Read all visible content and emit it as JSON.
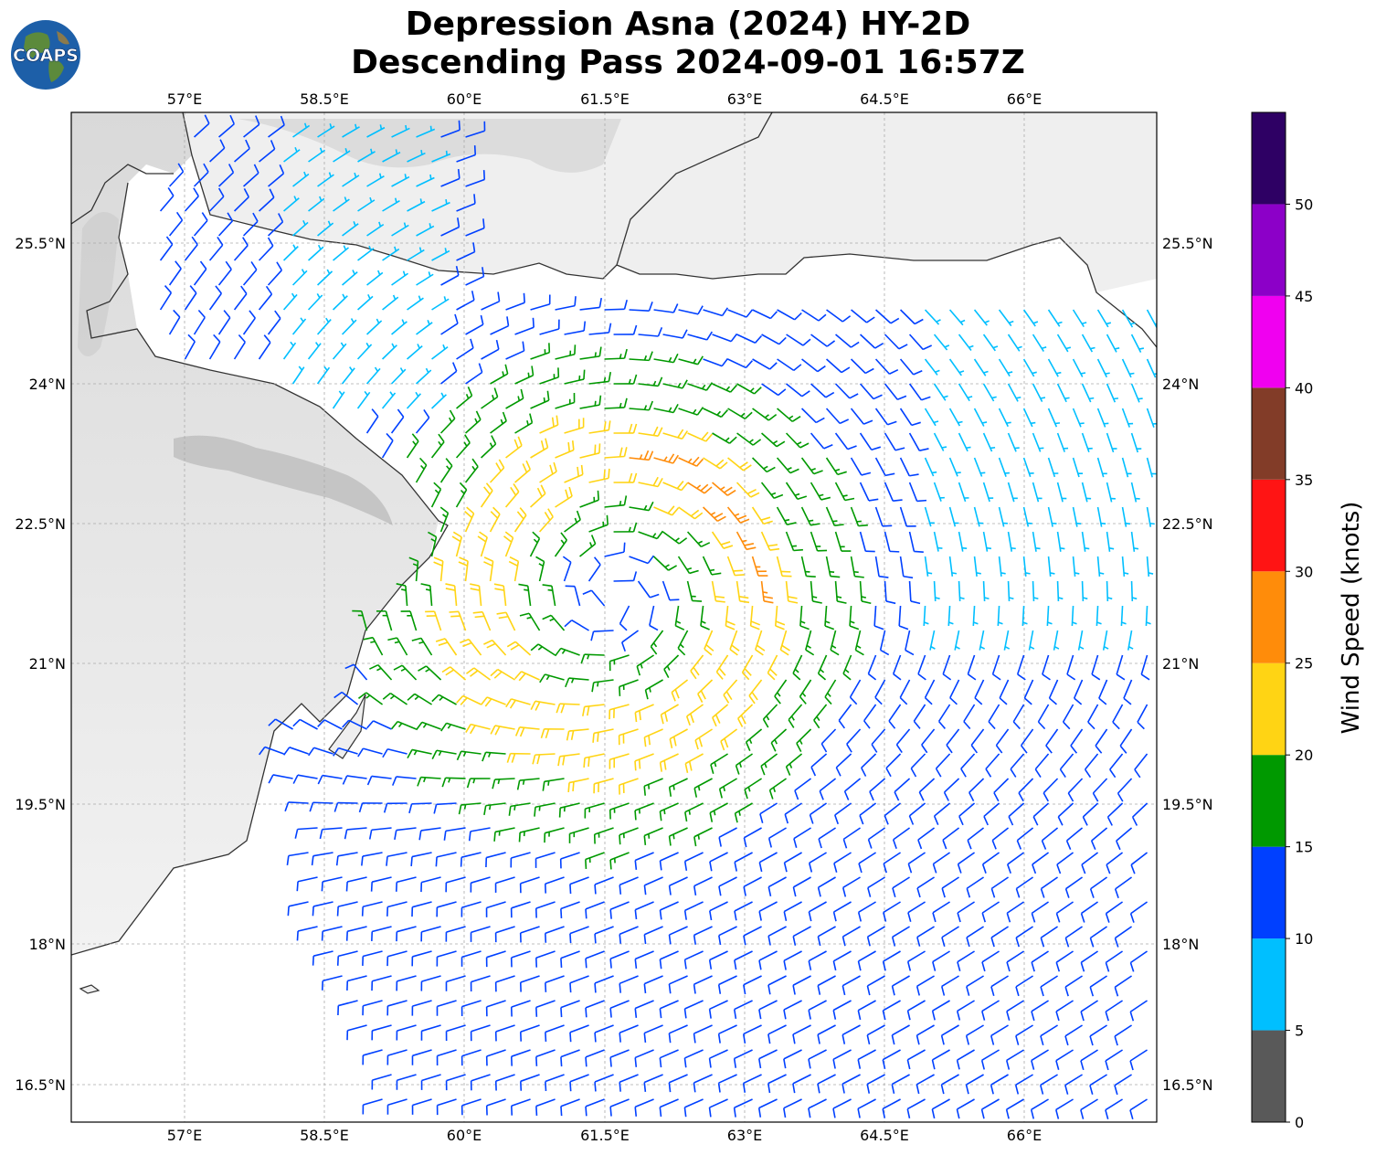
{
  "header": {
    "title_line1": "Depression Asna (2024) HY-2D",
    "title_line2": "Descending Pass 2024-09-01 16:57Z",
    "logo_text": "COAPS",
    "logo_icon": "globe-icon"
  },
  "map": {
    "lon_labels": [
      "57°E",
      "58.5°E",
      "60°E",
      "61.5°E",
      "63°E",
      "64.5°E",
      "66°E"
    ],
    "lat_labels": [
      "25.5°N",
      "24°N",
      "22.5°N",
      "21°N",
      "19.5°N",
      "18°N",
      "16.5°N"
    ],
    "lon_values": [
      57,
      58.5,
      60,
      61.5,
      63,
      64.5,
      66
    ],
    "lat_values": [
      25.5,
      24,
      22.5,
      21,
      19.5,
      18,
      16.5
    ],
    "lon_range": [
      55.8,
      67.4
    ],
    "lat_range": [
      16.1,
      26.9
    ],
    "grid": true,
    "background": "grayscale IR satellite imagery over land, white ocean",
    "coastline_color": "#333333"
  },
  "colorbar": {
    "label": "Wind Speed (knots)",
    "tick_labels": [
      "0",
      "5",
      "10",
      "15",
      "20",
      "25",
      "30",
      "35",
      "40",
      "45",
      "50"
    ],
    "bins": [
      {
        "min": 0,
        "max": 5,
        "color": "#595959"
      },
      {
        "min": 5,
        "max": 10,
        "color": "#00bfff"
      },
      {
        "min": 10,
        "max": 15,
        "color": "#0040ff"
      },
      {
        "min": 15,
        "max": 20,
        "color": "#009900"
      },
      {
        "min": 20,
        "max": 25,
        "color": "#ffd414"
      },
      {
        "min": 25,
        "max": 30,
        "color": "#ff8c0a"
      },
      {
        "min": 30,
        "max": 35,
        "color": "#ff1414"
      },
      {
        "min": 35,
        "max": 40,
        "color": "#823c28"
      },
      {
        "min": 40,
        "max": 45,
        "color": "#f000f0"
      },
      {
        "min": 45,
        "max": 50,
        "color": "#8c00c8"
      },
      {
        "min": 50,
        "max": 55,
        "color": "#2e0064"
      }
    ]
  },
  "wind_field": {
    "storm_center": {
      "lon": 61.6,
      "lat": 21.7
    },
    "type": "cyclonic barbs",
    "swath_note": "scatterometer wind barbs"
  }
}
